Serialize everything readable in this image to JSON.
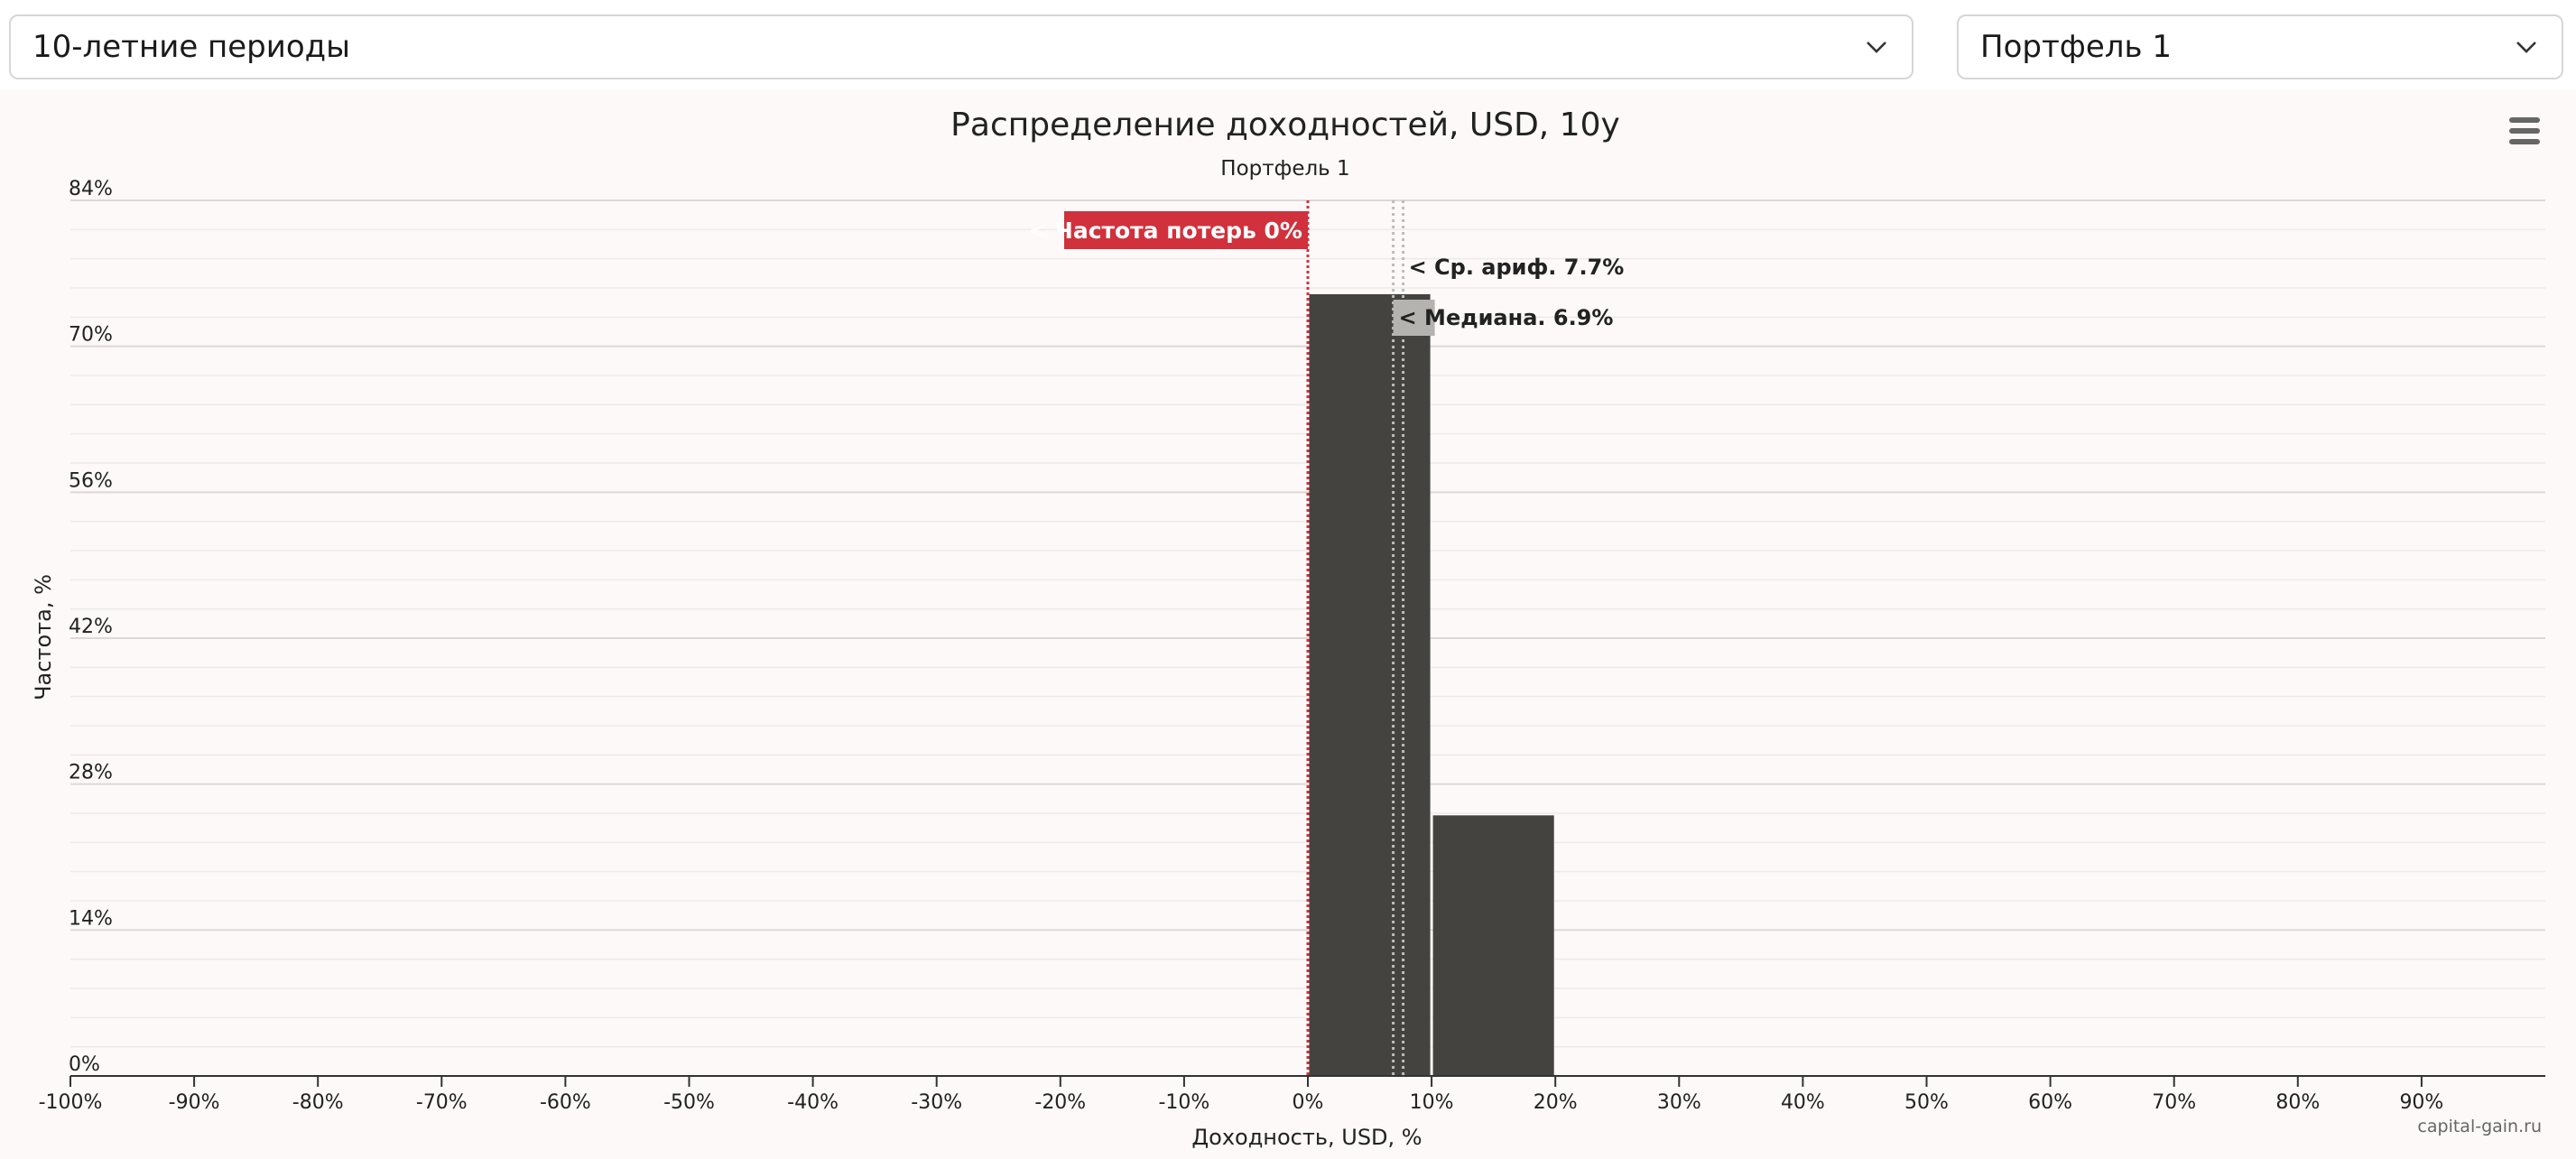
{
  "controls": {
    "period_select": {
      "value": "10-летние периоды"
    },
    "portfolio_select": {
      "value": "Портфель 1"
    }
  },
  "chart_data": {
    "type": "bar",
    "title": "Распределение доходностей, USD, 10y",
    "subtitle": "Портфель 1",
    "xlabel": "Доходность, USD, %",
    "ylabel": "Частота, %",
    "xlim": [
      -100,
      100
    ],
    "ylim": [
      0,
      84
    ],
    "x_ticks": [
      "-100%",
      "-90%",
      "-80%",
      "-70%",
      "-60%",
      "-50%",
      "-40%",
      "-30%",
      "-20%",
      "-10%",
      "0%",
      "10%",
      "20%",
      "30%",
      "40%",
      "50%",
      "60%",
      "70%",
      "80%",
      "90%"
    ],
    "x_tick_values": [
      -100,
      -90,
      -80,
      -70,
      -60,
      -50,
      -40,
      -30,
      -20,
      -10,
      0,
      10,
      20,
      30,
      40,
      50,
      60,
      70,
      80,
      90
    ],
    "y_ticks": [
      "0%",
      "14%",
      "28%",
      "42%",
      "56%",
      "70%",
      "84%"
    ],
    "y_tick_values": [
      0,
      14,
      28,
      42,
      56,
      70,
      84
    ],
    "y_minor_step": 2.8,
    "grid": true,
    "bars": [
      {
        "from": 0,
        "to": 10,
        "value": 75
      },
      {
        "from": 10,
        "to": 20,
        "value": 25
      }
    ],
    "bar_color": "#444340",
    "annotations": {
      "loss_frequency": {
        "x": 0,
        "label": "< Частота потерь 0%",
        "color": "#d0313c"
      },
      "mean": {
        "x": 7.7,
        "label": "< Ср. ариф. 7.7%"
      },
      "median": {
        "x": 6.9,
        "label": "< Медиана. 6.9%"
      }
    },
    "credit": "capital-gain.ru"
  }
}
